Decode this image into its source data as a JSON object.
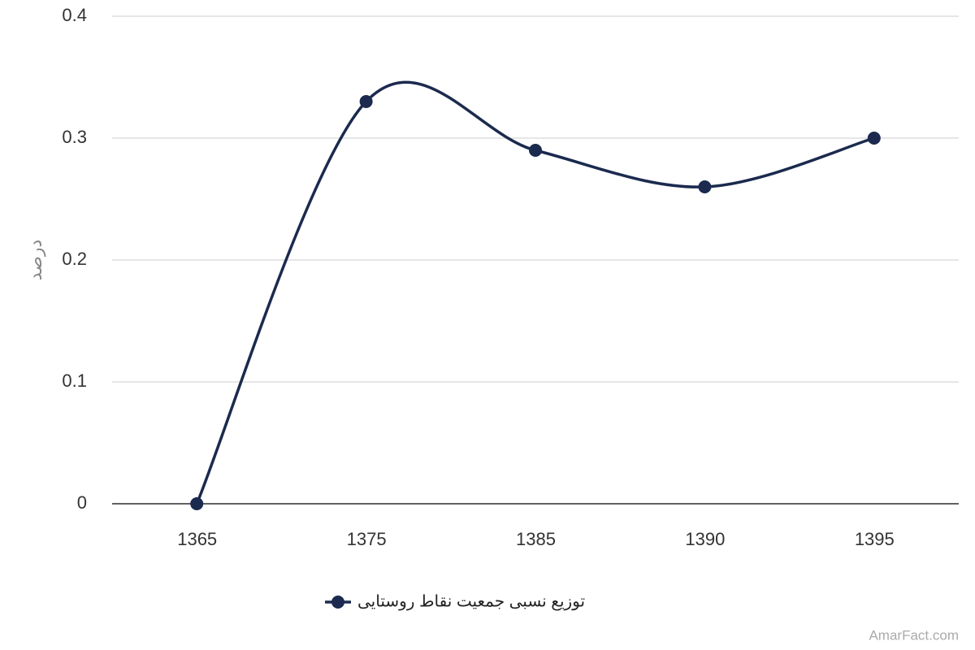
{
  "chart_data": {
    "type": "line",
    "y_label": "درصد",
    "categories": [
      "1365",
      "1375",
      "1385",
      "1390",
      "1395"
    ],
    "series": [
      {
        "name": "توزیع نسبی جمعیت نقاط روستایی",
        "color": "#1b2a4e",
        "values": [
          0,
          0.33,
          0.29,
          0.26,
          0.3
        ]
      }
    ],
    "ylim": [
      0,
      0.4
    ],
    "yticks": [
      0,
      0.1,
      0.2,
      0.3,
      0.4
    ],
    "grid": true,
    "smooth": true,
    "legend": "bottom",
    "watermark": "AmarFact.com"
  }
}
